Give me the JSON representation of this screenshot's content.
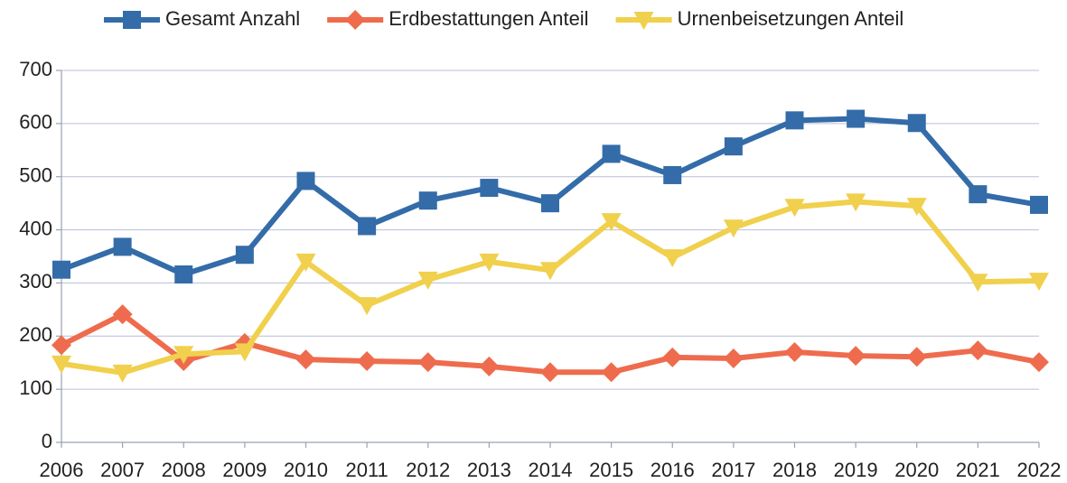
{
  "chart_data": {
    "type": "line",
    "categories": [
      "2006",
      "2007",
      "2008",
      "2009",
      "2010",
      "2011",
      "2012",
      "2013",
      "2014",
      "2015",
      "2016",
      "2017",
      "2018",
      "2019",
      "2020",
      "2021",
      "2022"
    ],
    "series": [
      {
        "name": "Gesamt Anzahl",
        "color": "#336ca8",
        "marker": "square",
        "values": [
          325,
          368,
          316,
          353,
          492,
          407,
          455,
          479,
          450,
          543,
          503,
          557,
          606,
          609,
          601,
          467,
          447
        ]
      },
      {
        "name": "Erdbestattungen Anteil",
        "color": "#ee6c4d",
        "marker": "diamond",
        "values": [
          183,
          241,
          153,
          187,
          156,
          153,
          151,
          143,
          132,
          132,
          160,
          158,
          170,
          163,
          161,
          173,
          151
        ]
      },
      {
        "name": "Urnenbeisetzungen Anteil",
        "color": "#f0d04c",
        "marker": "triangle-down",
        "values": [
          148,
          131,
          166,
          171,
          340,
          258,
          306,
          340,
          324,
          416,
          348,
          404,
          443,
          453,
          445,
          302,
          304
        ]
      }
    ],
    "ylim": [
      0,
      700
    ],
    "yticks": [
      0,
      100,
      200,
      300,
      400,
      500,
      600,
      700
    ],
    "grid": true,
    "legend": "top"
  }
}
